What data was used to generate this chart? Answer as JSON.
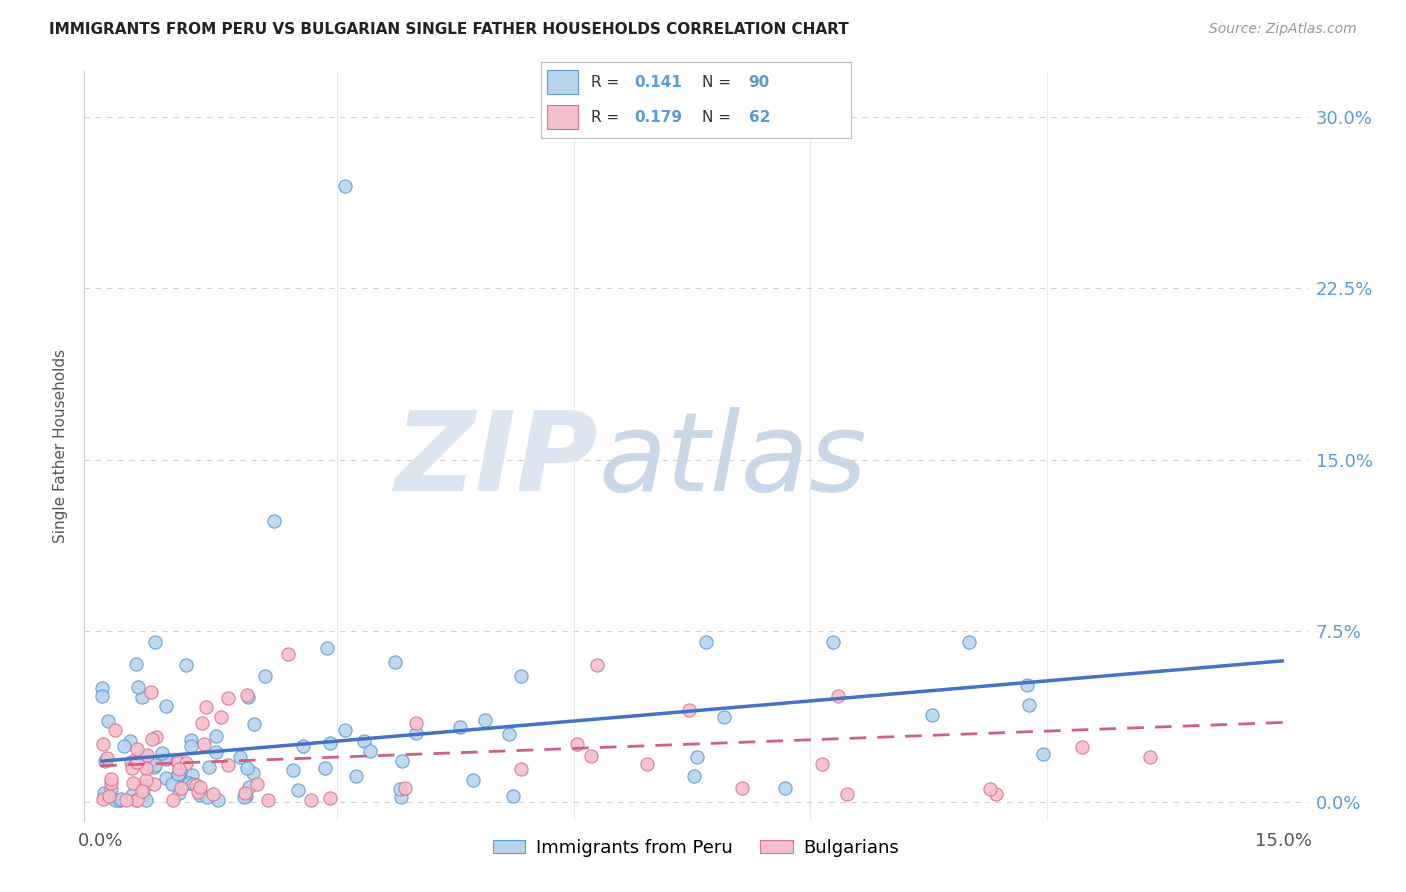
{
  "title": "IMMIGRANTS FROM PERU VS BULGARIAN SINGLE FATHER HOUSEHOLDS CORRELATION CHART",
  "source": "Source: ZipAtlas.com",
  "ylabel": "Single Father Households",
  "ytick_labels": [
    "0.0%",
    "7.5%",
    "15.0%",
    "22.5%",
    "30.0%"
  ],
  "ytick_values": [
    0.0,
    0.075,
    0.15,
    0.225,
    0.3
  ],
  "xlim": [
    0.0,
    0.15
  ],
  "ylim": [
    0.0,
    0.32
  ],
  "legend_label1": "Immigrants from Peru",
  "legend_label2": "Bulgarians",
  "R1": "0.141",
  "N1": "90",
  "R2": "0.179",
  "N2": "62",
  "color_peru_fill": "#b8d4ea",
  "color_peru_edge": "#5b9bd5",
  "color_bulgarian_fill": "#f4bfcc",
  "color_bulgarian_edge": "#e07090",
  "color_peru_line": "#4472c4",
  "color_bulgarian_line": "#d06080",
  "color_right_axis": "#5b9bd5",
  "watermark_zip_color": "#dce6f0",
  "watermark_atlas_color": "#c8d8e8",
  "grid_color": "#d0d0d0"
}
